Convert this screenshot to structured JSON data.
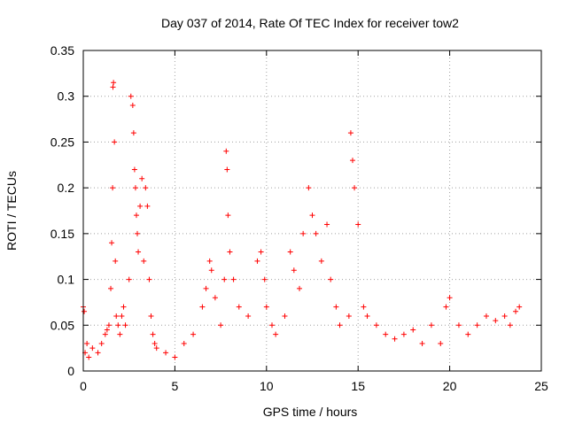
{
  "chart_data": {
    "type": "scatter",
    "title": "Day 037 of 2014, Rate Of TEC Index for receiver tow2",
    "xlabel": "GPS time / hours",
    "ylabel": "ROTI / TECUs",
    "xlim": [
      0,
      25
    ],
    "ylim": [
      0,
      0.35
    ],
    "xticks": [
      "0",
      "5",
      "10",
      "15",
      "20",
      "25"
    ],
    "yticks": [
      "0",
      "0.05",
      "0.1",
      "0.15",
      "0.2",
      "0.25",
      "0.3",
      "0.35"
    ],
    "grid": true,
    "legend": "none",
    "marker": "+",
    "series_color": "#ff0000",
    "series": [
      {
        "x": [
          0.0,
          0.05,
          0.1,
          0.2,
          0.3,
          0.5,
          0.8,
          1.0,
          1.2,
          1.3,
          1.4,
          1.5,
          1.55,
          1.6,
          1.62,
          1.65,
          1.7,
          1.75,
          1.8,
          1.9,
          2.0,
          2.1,
          2.2,
          2.3,
          2.5,
          2.6,
          2.7,
          2.75,
          2.8,
          2.85,
          2.9,
          2.95,
          3.0,
          3.1,
          3.2,
          3.3,
          3.4,
          3.5,
          3.6,
          3.7,
          3.8,
          3.9,
          4.0,
          4.5,
          5.0,
          5.5,
          6.0,
          6.5,
          6.7,
          6.9,
          7.0,
          7.2,
          7.5,
          7.7,
          7.8,
          7.85,
          7.9,
          8.0,
          8.2,
          8.5,
          9.0,
          9.5,
          9.7,
          9.9,
          10.0,
          10.3,
          10.5,
          11.0,
          11.3,
          11.5,
          11.8,
          12.0,
          12.3,
          12.5,
          12.7,
          13.0,
          13.3,
          13.5,
          13.8,
          14.0,
          14.5,
          14.6,
          14.7,
          14.8,
          15.0,
          15.3,
          15.5,
          16.0,
          16.5,
          17.0,
          17.5,
          18.0,
          18.5,
          19.0,
          19.5,
          19.8,
          20.0,
          20.5,
          21.0,
          21.5,
          22.0,
          22.5,
          23.0,
          23.3,
          23.6,
          23.8
        ],
        "y": [
          0.07,
          0.065,
          0.02,
          0.03,
          0.015,
          0.025,
          0.02,
          0.03,
          0.04,
          0.045,
          0.05,
          0.09,
          0.14,
          0.2,
          0.31,
          0.315,
          0.25,
          0.12,
          0.06,
          0.05,
          0.04,
          0.06,
          0.07,
          0.05,
          0.1,
          0.3,
          0.29,
          0.26,
          0.22,
          0.2,
          0.17,
          0.15,
          0.13,
          0.18,
          0.21,
          0.12,
          0.2,
          0.18,
          0.1,
          0.06,
          0.04,
          0.03,
          0.025,
          0.02,
          0.015,
          0.03,
          0.04,
          0.07,
          0.09,
          0.12,
          0.11,
          0.08,
          0.05,
          0.1,
          0.24,
          0.22,
          0.17,
          0.13,
          0.1,
          0.07,
          0.06,
          0.12,
          0.13,
          0.1,
          0.07,
          0.05,
          0.04,
          0.06,
          0.13,
          0.11,
          0.09,
          0.15,
          0.2,
          0.17,
          0.15,
          0.12,
          0.16,
          0.1,
          0.07,
          0.05,
          0.06,
          0.26,
          0.23,
          0.2,
          0.16,
          0.07,
          0.06,
          0.05,
          0.04,
          0.035,
          0.04,
          0.045,
          0.03,
          0.05,
          0.03,
          0.07,
          0.08,
          0.05,
          0.04,
          0.05,
          0.06,
          0.055,
          0.06,
          0.05,
          0.065,
          0.07
        ]
      }
    ]
  }
}
